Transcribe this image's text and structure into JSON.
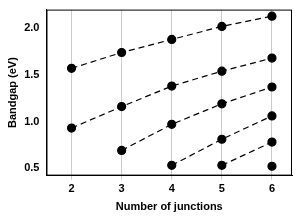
{
  "chart_data": {
    "type": "line",
    "x_label": "Number of junctions",
    "y_label": "Bandgap (eV)",
    "x": [
      2,
      3,
      4,
      5,
      6
    ],
    "series": [
      {
        "color": "#000000",
        "marker": "circle",
        "line_style": "dashed",
        "values": [
          1.57,
          1.74,
          1.88,
          2.02,
          2.13
        ]
      },
      {
        "color": "#000000",
        "marker": "circle",
        "line_style": "dashed",
        "values": [
          0.93,
          1.16,
          1.38,
          1.54,
          1.68
        ]
      },
      {
        "color": "#000000",
        "marker": "circle",
        "line_style": "dashed",
        "values": [
          null,
          0.69,
          0.97,
          1.19,
          1.37
        ]
      },
      {
        "color": "#000000",
        "marker": "circle",
        "line_style": "dashed",
        "values": [
          null,
          null,
          0.53,
          0.81,
          1.06
        ]
      },
      {
        "color": "#000000",
        "marker": "circle",
        "line_style": "dashed",
        "values": [
          null,
          null,
          null,
          0.53,
          0.78
        ]
      },
      {
        "color": "#000000",
        "marker": "circle",
        "line_style": "dashed",
        "values": [
          null,
          null,
          null,
          null,
          0.52
        ]
      }
    ],
    "xlim": [
      1.5,
      6.4
    ],
    "ylim": [
      0.42,
      2.2
    ],
    "xticks": [
      2,
      3,
      4,
      5,
      6
    ],
    "yticks": [
      {
        "value": 0.5,
        "label": "0.5"
      },
      {
        "value": 1,
        "label": "1.0"
      },
      {
        "value": 1.5,
        "label": "1.5"
      },
      {
        "value": 2,
        "label": "2.0"
      }
    ],
    "grid": "x"
  }
}
